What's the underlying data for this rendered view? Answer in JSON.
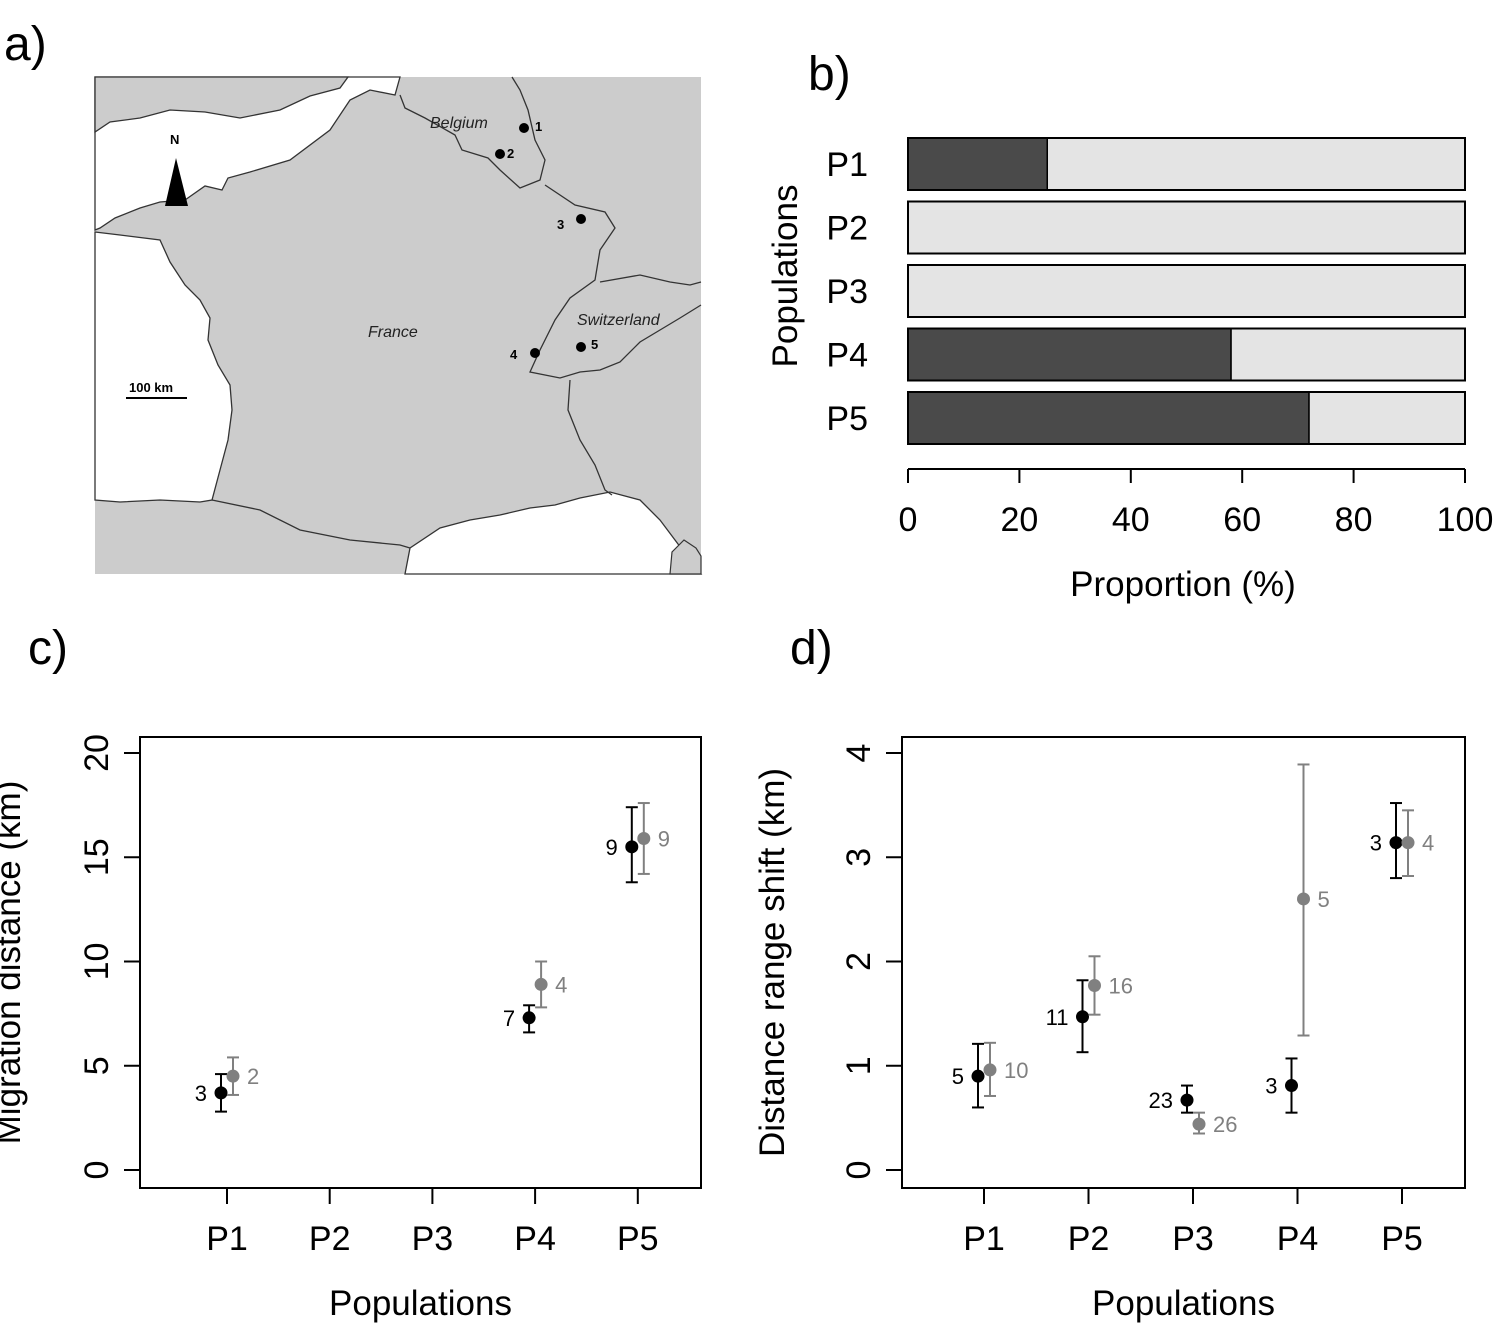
{
  "panels": {
    "a": "a)",
    "b": "b)",
    "c": "c)",
    "d": "d)"
  },
  "colors": {
    "dark": "#4a4a4a",
    "light": "#e4e4e4",
    "black": "#000000",
    "grey": "#808080",
    "land": "#cccccc",
    "sea": "#ffffff"
  },
  "map": {
    "north": "N",
    "scale": "100 km",
    "labels": {
      "belgium": "Belgium",
      "france": "France",
      "switzerland": "Switzerland"
    },
    "sites": [
      "1",
      "2",
      "3",
      "4",
      "5"
    ]
  },
  "chart_data": [
    {
      "panel": "b",
      "type": "bar",
      "orientation": "horizontal",
      "stacked": true,
      "categories": [
        "P1",
        "P2",
        "P3",
        "P4",
        "P5"
      ],
      "series": [
        {
          "name": "dark",
          "values": [
            25,
            0,
            0,
            58,
            72
          ]
        },
        {
          "name": "light",
          "values": [
            75,
            100,
            100,
            42,
            28
          ]
        }
      ],
      "xlim": [
        0,
        100
      ],
      "xticks": [
        0,
        20,
        40,
        60,
        80,
        100
      ],
      "xlabel": "Proportion (%)",
      "ylabel": "Populations"
    },
    {
      "panel": "c",
      "type": "scatter",
      "categories": [
        "P1",
        "P2",
        "P3",
        "P4",
        "P5"
      ],
      "series": [
        {
          "name": "black",
          "points": [
            {
              "cat": "P1",
              "y": 3.7,
              "lo": 2.8,
              "hi": 4.6,
              "n": "3"
            },
            {
              "cat": "P4",
              "y": 7.3,
              "lo": 6.6,
              "hi": 7.9,
              "n": "7"
            },
            {
              "cat": "P5",
              "y": 15.5,
              "lo": 13.8,
              "hi": 17.4,
              "n": "9"
            }
          ]
        },
        {
          "name": "grey",
          "points": [
            {
              "cat": "P1",
              "y": 4.5,
              "lo": 3.6,
              "hi": 5.4,
              "n": "2"
            },
            {
              "cat": "P4",
              "y": 8.9,
              "lo": 7.8,
              "hi": 10.0,
              "n": "4"
            },
            {
              "cat": "P5",
              "y": 15.9,
              "lo": 14.2,
              "hi": 17.6,
              "n": "9"
            }
          ]
        }
      ],
      "ylim": [
        0,
        20
      ],
      "yticks": [
        "0",
        "5",
        "10",
        "15",
        "20"
      ],
      "xlabel": "Populations",
      "ylabel": "Migration distance (km)"
    },
    {
      "panel": "d",
      "type": "scatter",
      "categories": [
        "P1",
        "P2",
        "P3",
        "P4",
        "P5"
      ],
      "series": [
        {
          "name": "black",
          "points": [
            {
              "cat": "P1",
              "y": 0.9,
              "lo": 0.6,
              "hi": 1.21,
              "n": "5"
            },
            {
              "cat": "P2",
              "y": 1.47,
              "lo": 1.13,
              "hi": 1.82,
              "n": "11"
            },
            {
              "cat": "P3",
              "y": 0.67,
              "lo": 0.55,
              "hi": 0.81,
              "n": "23"
            },
            {
              "cat": "P4",
              "y": 0.81,
              "lo": 0.55,
              "hi": 1.07,
              "n": "3"
            },
            {
              "cat": "P5",
              "y": 3.14,
              "lo": 2.8,
              "hi": 3.52,
              "n": "3"
            }
          ]
        },
        {
          "name": "grey",
          "points": [
            {
              "cat": "P1",
              "y": 0.96,
              "lo": 0.71,
              "hi": 1.22,
              "n": "10"
            },
            {
              "cat": "P2",
              "y": 1.77,
              "lo": 1.49,
              "hi": 2.05,
              "n": "16"
            },
            {
              "cat": "P3",
              "y": 0.44,
              "lo": 0.35,
              "hi": 0.55,
              "n": "26"
            },
            {
              "cat": "P4",
              "y": 2.6,
              "lo": 1.29,
              "hi": 3.89,
              "n": "5"
            },
            {
              "cat": "P5",
              "y": 3.14,
              "lo": 2.82,
              "hi": 3.45,
              "n": "4"
            }
          ]
        }
      ],
      "ylim": [
        0,
        4
      ],
      "yticks": [
        "0",
        "1",
        "2",
        "3",
        "4"
      ],
      "xlabel": "Populations",
      "ylabel": "Distance range shift (km)"
    }
  ]
}
